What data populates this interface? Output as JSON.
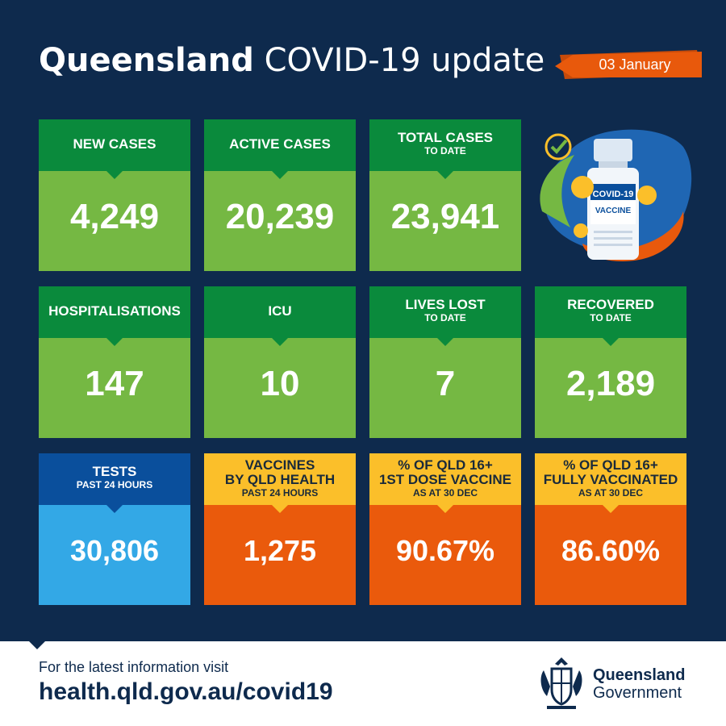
{
  "header": {
    "title_bold": "Queensland",
    "title_rest": "COVID-19 update",
    "date": "03 January"
  },
  "tiles": {
    "new_cases": {
      "label": "NEW CASES",
      "value": "4,249"
    },
    "active_cases": {
      "label": "ACTIVE CASES",
      "value": "20,239"
    },
    "total_cases": {
      "label": "TOTAL CASES",
      "sublabel": "TO DATE",
      "value": "23,941"
    },
    "hospitalisations": {
      "label": "HOSPITALISATIONS",
      "value": "147"
    },
    "icu": {
      "label": "ICU",
      "value": "10"
    },
    "lives_lost": {
      "label": "LIVES LOST",
      "sublabel": "TO DATE",
      "value": "7"
    },
    "recovered": {
      "label": "RECOVERED",
      "sublabel": "TO DATE",
      "value": "2,189"
    },
    "tests": {
      "label": "TESTS",
      "sublabel": "PAST 24 HOURS",
      "value": "30,806"
    },
    "vaccines": {
      "label": "VACCINES",
      "label2": "BY QLD HEALTH",
      "sublabel": "PAST 24 HOURS",
      "value": "1,275"
    },
    "first_dose": {
      "label": "% OF QLD 16+",
      "label2": "1ST DOSE VACCINE",
      "sublabel": "AS AT 30 DEC",
      "value": "90.67%"
    },
    "fully_vaccinated": {
      "label": "% OF QLD 16+",
      "label2": "FULLY VACCINATED",
      "sublabel": "AS AT 30 DEC",
      "value": "86.60%"
    }
  },
  "vaccine_art": {
    "vial_label_top": "COVID-19",
    "vial_label_bottom": "VACCINE"
  },
  "footer": {
    "line1": "For the latest information visit",
    "link": "health.qld.gov.au/covid19",
    "gov_name": "Queensland",
    "gov_sub": "Government"
  },
  "colors": {
    "background": "#0e2a4d",
    "green_header": "#0a8a3c",
    "green_body": "#75b843",
    "blue_header": "#0a4f9c",
    "blue_body": "#33a8e6",
    "yellow_header": "#fbbf2a",
    "orange_body": "#ea5a0c",
    "ribbon": "#e8590c"
  },
  "icons": [
    "check-icon",
    "virus-icon",
    "vaccine-vial-icon",
    "queensland-crest-icon"
  ]
}
